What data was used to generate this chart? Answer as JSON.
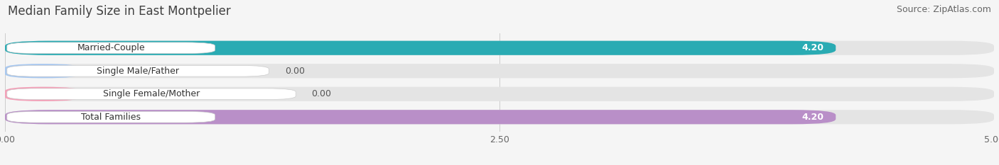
{
  "title": "Median Family Size in East Montpelier",
  "source": "Source: ZipAtlas.com",
  "categories": [
    "Married-Couple",
    "Single Male/Father",
    "Single Female/Mother",
    "Total Families"
  ],
  "values": [
    4.2,
    0.0,
    0.0,
    4.2
  ],
  "bar_colors": [
    "#2aabb3",
    "#a8c8f0",
    "#f4a0b8",
    "#b98fc8"
  ],
  "label_bg_color": "#ffffff",
  "background_color": "#f5f5f5",
  "bar_bg_color": "#e4e4e4",
  "xlim": [
    0,
    5.0
  ],
  "xticks": [
    0.0,
    2.5,
    5.0
  ],
  "value_label_color": "#ffffff",
  "value_label_color_zero": "#555555",
  "title_fontsize": 12,
  "source_fontsize": 9,
  "tick_fontsize": 9,
  "bar_label_fontsize": 9,
  "value_fontsize": 9,
  "bar_height": 0.62,
  "figsize": [
    14.06,
    2.33
  ],
  "dpi": 100
}
